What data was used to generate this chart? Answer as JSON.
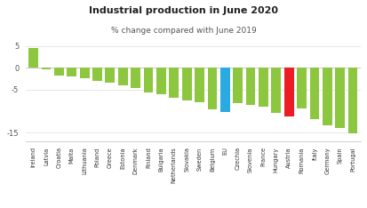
{
  "title": "Industrial production in June 2020",
  "subtitle": "% change compared with June 2019",
  "categories": [
    "Ireland",
    "Latvia",
    "Croatia",
    "Malta",
    "Lithuania",
    "Poland",
    "Greece",
    "Estonia",
    "Denmark",
    "Finland",
    "Bulgaria",
    "Netherlands",
    "Slovakia",
    "Sweden",
    "Belgium",
    "EU",
    "Czechia",
    "Slovenia",
    "France",
    "Hungary",
    "Austria",
    "Romania",
    "Italy",
    "Germany",
    "Spain",
    "Portugal"
  ],
  "values": [
    4.5,
    -0.4,
    -1.8,
    -2.1,
    -2.5,
    -3.0,
    -3.5,
    -4.0,
    -4.6,
    -5.6,
    -6.1,
    -7.0,
    -7.5,
    -8.0,
    -9.5,
    -10.2,
    -8.2,
    -8.6,
    -9.0,
    -10.4,
    -11.2,
    -9.3,
    -11.8,
    -13.2,
    -14.0,
    -15.2
  ],
  "colors": [
    "#8dc63f",
    "#8dc63f",
    "#8dc63f",
    "#8dc63f",
    "#8dc63f",
    "#8dc63f",
    "#8dc63f",
    "#8dc63f",
    "#8dc63f",
    "#8dc63f",
    "#8dc63f",
    "#8dc63f",
    "#8dc63f",
    "#8dc63f",
    "#8dc63f",
    "#29abe2",
    "#8dc63f",
    "#8dc63f",
    "#8dc63f",
    "#8dc63f",
    "#ed1c24",
    "#8dc63f",
    "#8dc63f",
    "#8dc63f",
    "#8dc63f",
    "#8dc63f"
  ],
  "ylim": [
    -17,
    7
  ],
  "yticks": [
    5,
    0,
    -5,
    -15
  ],
  "background_color": "#ffffff",
  "title_fontsize": 8,
  "subtitle_fontsize": 6.5,
  "label_fontsize": 4.8
}
